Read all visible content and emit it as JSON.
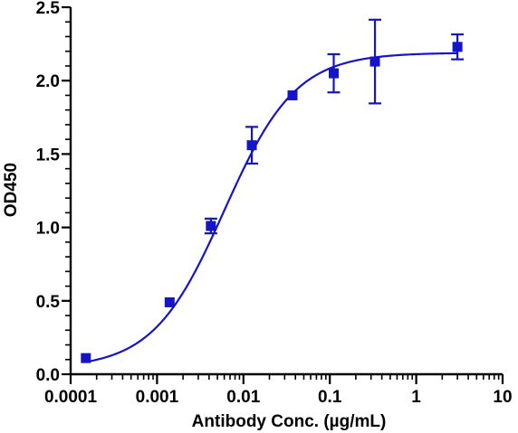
{
  "chart_data": {
    "type": "scatter",
    "title": "",
    "xlabel": "Antibody Conc. (µg/mL)",
    "ylabel": "OD450",
    "x_scale": "log",
    "xlim": [
      0.0001,
      10
    ],
    "ylim": [
      0,
      2.5
    ],
    "x_ticks": [
      "0.0001",
      "0.001",
      "0.01",
      "0.1",
      "1",
      "10"
    ],
    "y_ticks": [
      "0.0",
      "0.5",
      "1.0",
      "1.5",
      "2.0",
      "2.5"
    ],
    "grid": false,
    "legend": "none",
    "color": "#1414c8",
    "marker": "square",
    "fit": "4-parameter logistic curve",
    "series": [
      {
        "x": [
          0.00015,
          0.0014,
          0.0042,
          0.0125,
          0.037,
          0.111,
          0.333,
          3.0
        ],
        "y": [
          0.11,
          0.49,
          1.01,
          1.56,
          1.9,
          2.05,
          2.13,
          2.23
        ],
        "error": [
          0.0,
          0.0,
          0.05,
          0.125,
          0.0,
          0.13,
          0.285,
          0.085
        ]
      }
    ]
  }
}
